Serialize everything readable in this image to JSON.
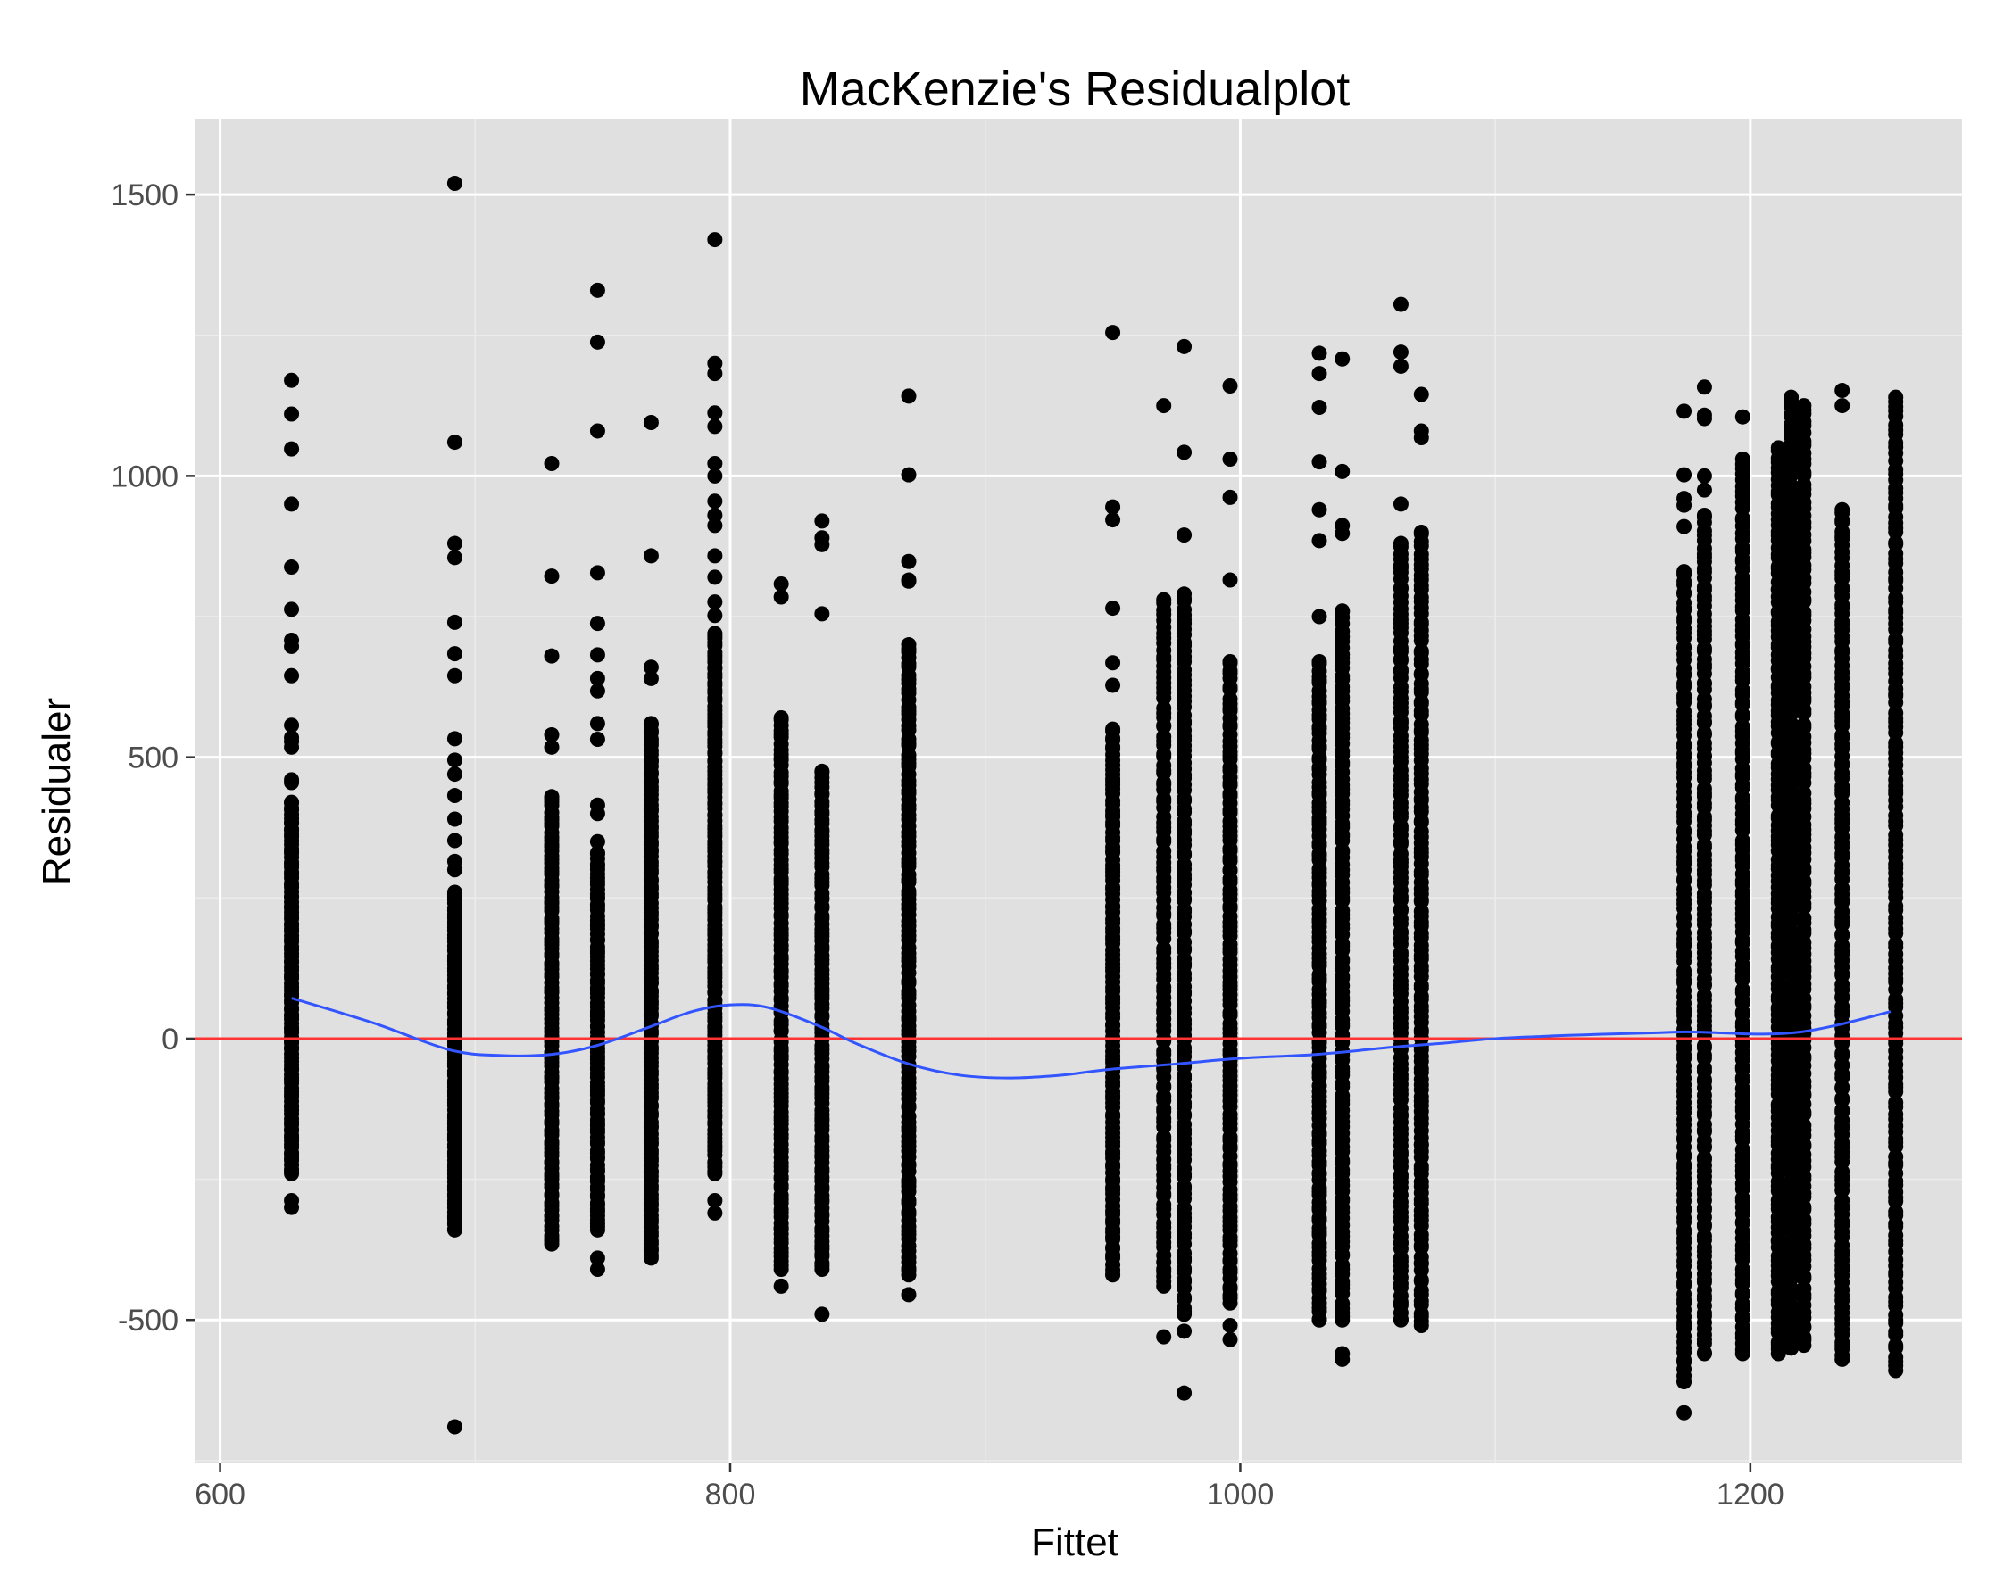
{
  "chart_data": {
    "type": "scatter",
    "title": "MacKenzie's Residualplot",
    "xlabel": "Fittet",
    "ylabel": "Residualer",
    "xlim": [
      590,
      1283
    ],
    "ylim": [
      -755,
      1635
    ],
    "x_ticks": [
      600,
      800,
      1000,
      1200
    ],
    "x_tick_labels": [
      "600",
      "800",
      "1000",
      "1200"
    ],
    "y_ticks": [
      -500,
      0,
      500,
      1000,
      1500
    ],
    "y_tick_labels": [
      "-500",
      "0",
      "500",
      "1000",
      "1500"
    ],
    "grid": true,
    "legend": "none",
    "colors": {
      "panel": "#e0e0e0",
      "grid_major": "#ffffff",
      "grid_minor": "#ececec",
      "points": "#000000",
      "reference_line": "#ff3333",
      "smooth_line": "#3355ff"
    },
    "reference_line": {
      "y": 0
    },
    "smooth": {
      "x": [
        628,
        660,
        690,
        710,
        730,
        748,
        768,
        785,
        800,
        815,
        835,
        850,
        870,
        890,
        910,
        930,
        948,
        975,
        1000,
        1030,
        1060,
        1080,
        1100,
        1130,
        1160,
        1175,
        1190,
        1205,
        1220,
        1235,
        1255
      ],
      "y": [
        72,
        28,
        -20,
        -30,
        -28,
        -12,
        20,
        48,
        60,
        55,
        22,
        -10,
        -45,
        -65,
        -70,
        -65,
        -55,
        -45,
        -35,
        -28,
        -15,
        -8,
        0,
        6,
        10,
        12,
        10,
        8,
        12,
        25,
        48
      ]
    },
    "series": [
      {
        "x": 628,
        "lo": -240,
        "hi": 420,
        "n": 110,
        "extra": [
          1170,
          1110,
          1048,
          950,
          838,
          763,
          708,
          697,
          645,
          557,
          535,
          528,
          518,
          460,
          455,
          -300,
          -288
        ]
      },
      {
        "x": 692,
        "lo": -340,
        "hi": 260,
        "n": 100,
        "extra": [
          1520,
          1060,
          880,
          855,
          740,
          684,
          645,
          533,
          495,
          470,
          432,
          390,
          352,
          315,
          300,
          -690
        ]
      },
      {
        "x": 730,
        "lo": -365,
        "hi": 430,
        "n": 110,
        "extra": [
          1022,
          822,
          680,
          540,
          518
        ]
      },
      {
        "x": 748,
        "lo": -340,
        "hi": 330,
        "n": 100,
        "extra": [
          1330,
          1238,
          1080,
          828,
          738,
          682,
          640,
          618,
          560,
          532,
          415,
          400,
          350,
          -390,
          -410
        ]
      },
      {
        "x": 769,
        "lo": -390,
        "hi": 560,
        "n": 130,
        "extra": [
          1095,
          858,
          660,
          640
        ]
      },
      {
        "x": 794,
        "lo": -240,
        "hi": 720,
        "n": 140,
        "extra": [
          1420,
          1200,
          1182,
          1112,
          1088,
          1022,
          1000,
          955,
          930,
          912,
          858,
          820,
          776,
          752,
          -288,
          -310
        ]
      },
      {
        "x": 820,
        "lo": -410,
        "hi": 570,
        "n": 120,
        "extra": [
          808,
          785,
          -440
        ]
      },
      {
        "x": 836,
        "lo": -410,
        "hi": 475,
        "n": 110,
        "extra": [
          920,
          890,
          878,
          755,
          -490
        ]
      },
      {
        "x": 870,
        "lo": -420,
        "hi": 700,
        "n": 120,
        "extra": [
          1142,
          1002,
          848,
          815,
          813,
          -455
        ]
      },
      {
        "x": 950,
        "lo": -420,
        "hi": 550,
        "n": 120,
        "extra": [
          1255,
          945,
          922,
          765,
          668,
          628
        ]
      },
      {
        "x": 970,
        "lo": -440,
        "hi": 780,
        "n": 120,
        "extra": [
          1125,
          -530
        ]
      },
      {
        "x": 978,
        "lo": -490,
        "hi": 790,
        "n": 130,
        "extra": [
          1230,
          1042,
          895,
          -520,
          -630
        ]
      },
      {
        "x": 996,
        "lo": -470,
        "hi": 670,
        "n": 120,
        "extra": [
          1160,
          1030,
          962,
          815,
          -510,
          -535
        ]
      },
      {
        "x": 1031,
        "lo": -500,
        "hi": 670,
        "n": 130,
        "extra": [
          1218,
          1182,
          1122,
          1025,
          940,
          885,
          750
        ]
      },
      {
        "x": 1040,
        "lo": -500,
        "hi": 760,
        "n": 130,
        "extra": [
          1208,
          1008,
          912,
          898,
          -560,
          -570
        ]
      },
      {
        "x": 1063,
        "lo": -500,
        "hi": 880,
        "n": 140,
        "extra": [
          1305,
          1220,
          1195,
          950
        ]
      },
      {
        "x": 1071,
        "lo": -510,
        "hi": 900,
        "n": 140,
        "extra": [
          1145,
          1080,
          1068
        ]
      },
      {
        "x": 1174,
        "lo": -610,
        "hi": 830,
        "n": 150,
        "extra": [
          1115,
          1002,
          960,
          948,
          910,
          -665
        ]
      },
      {
        "x": 1182,
        "lo": -560,
        "hi": 930,
        "n": 150,
        "extra": [
          1158,
          1108,
          1102,
          1000,
          975
        ]
      },
      {
        "x": 1197,
        "lo": -560,
        "hi": 1030,
        "n": 150,
        "extra": [
          1105
        ]
      },
      {
        "x": 1211,
        "lo": -560,
        "hi": 1050,
        "n": 160,
        "extra": []
      },
      {
        "x": 1216,
        "lo": -550,
        "hi": 1140,
        "n": 160,
        "extra": []
      },
      {
        "x": 1221,
        "lo": -545,
        "hi": 1125,
        "n": 150,
        "extra": []
      },
      {
        "x": 1236,
        "lo": -570,
        "hi": 940,
        "n": 150,
        "extra": [
          1152,
          1125
        ]
      },
      {
        "x": 1257,
        "lo": -590,
        "hi": 1140,
        "n": 160,
        "extra": []
      }
    ]
  }
}
